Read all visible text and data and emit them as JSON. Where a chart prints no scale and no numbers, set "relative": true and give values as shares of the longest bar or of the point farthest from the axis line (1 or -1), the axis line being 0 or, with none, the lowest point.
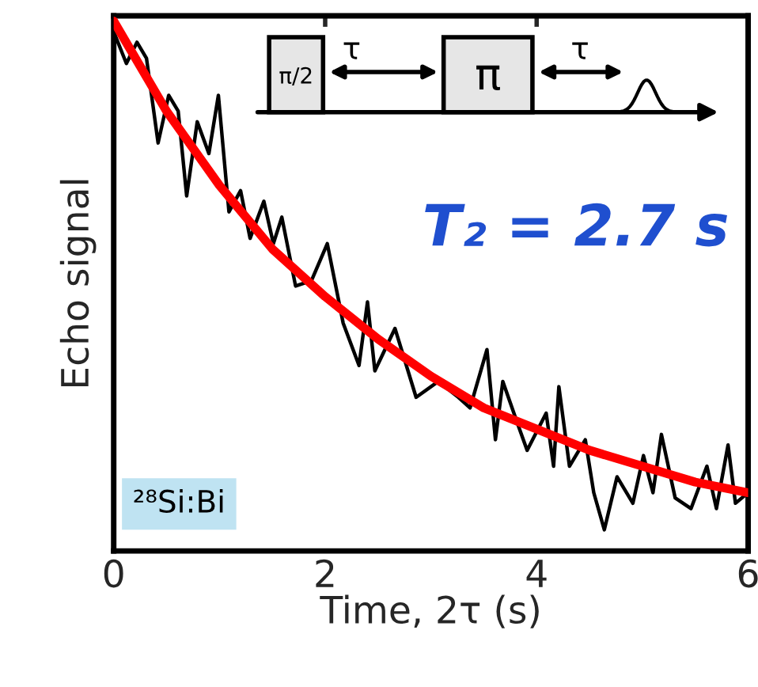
{
  "chart_data": {
    "type": "line",
    "xlabel": "Time, 2τ (s)",
    "ylabel": "Echo signal",
    "relative": true,
    "xlim": [
      0,
      6
    ],
    "xticks": [
      0,
      2,
      4,
      6
    ],
    "tick_labels": "x",
    "grid": false,
    "legend": false,
    "marker": "none",
    "line_style": "solid",
    "annotations": [
      "T₂ = 2.7 s",
      "²⁸Si:Bi",
      "π/2",
      "τ",
      "π",
      "τ"
    ],
    "series": [
      {
        "color": "#000000",
        "x": [
          0.0,
          0.12,
          0.22,
          0.31,
          0.42,
          0.52,
          0.61,
          0.69,
          0.79,
          0.9,
          0.99,
          1.09,
          1.2,
          1.29,
          1.42,
          1.51,
          1.59,
          1.72,
          1.87,
          2.02,
          2.17,
          2.32,
          2.4,
          2.47,
          2.66,
          2.86,
          3.07,
          3.26,
          3.37,
          3.53,
          3.61,
          3.68,
          3.82,
          3.91,
          4.09,
          4.16,
          4.21,
          4.31,
          4.46,
          4.54,
          4.64,
          4.76,
          4.91,
          5.01,
          5.1,
          5.18,
          5.31,
          5.46,
          5.61,
          5.7,
          5.81,
          5.88,
          6.0
        ],
        "values": [
          0.98,
          0.92,
          0.96,
          0.93,
          0.77,
          0.86,
          0.83,
          0.67,
          0.81,
          0.75,
          0.86,
          0.64,
          0.68,
          0.59,
          0.66,
          0.58,
          0.63,
          0.5,
          0.51,
          0.58,
          0.43,
          0.35,
          0.47,
          0.34,
          0.42,
          0.29,
          0.32,
          0.29,
          0.27,
          0.38,
          0.21,
          0.32,
          0.24,
          0.19,
          0.26,
          0.16,
          0.31,
          0.16,
          0.21,
          0.11,
          0.04,
          0.14,
          0.09,
          0.18,
          0.11,
          0.22,
          0.1,
          0.08,
          0.16,
          0.08,
          0.2,
          0.09,
          0.11
        ]
      },
      {
        "color": "#ff0000",
        "x": [
          0,
          0.5,
          1,
          1.5,
          2,
          2.5,
          3,
          3.5,
          4,
          4.5,
          5,
          5.5,
          6
        ],
        "values": [
          1.0,
          0.83,
          0.69,
          0.57,
          0.48,
          0.4,
          0.33,
          0.27,
          0.23,
          0.19,
          0.16,
          0.13,
          0.11
        ]
      }
    ]
  }
}
